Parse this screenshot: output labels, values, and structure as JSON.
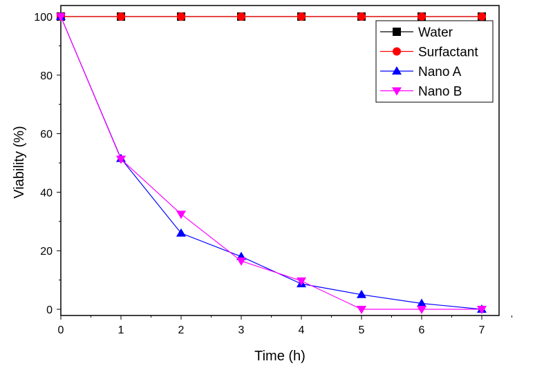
{
  "chart_data": {
    "type": "line",
    "title": "",
    "xlabel": "Time (h)",
    "ylabel": "Viability (%)",
    "xlim": [
      0,
      7.3
    ],
    "ylim": [
      -2,
      102
    ],
    "xticks": [
      0,
      1,
      2,
      3,
      4,
      5,
      6,
      7
    ],
    "yticks": [
      0,
      20,
      40,
      60,
      80,
      100
    ],
    "grid": false,
    "legend": "top-right",
    "x": [
      0,
      1,
      2,
      3,
      4,
      5,
      6,
      7
    ],
    "series": [
      {
        "name": "Water",
        "color": "#000000",
        "marker": "square",
        "values": [
          100,
          100,
          100,
          100,
          100,
          100,
          100,
          100
        ]
      },
      {
        "name": "Surfactant",
        "color": "#ff0000",
        "marker": "circle",
        "values": [
          100,
          100,
          100,
          100,
          100,
          100,
          100,
          100
        ]
      },
      {
        "name": "Nano A",
        "color": "#0000ff",
        "marker": "triangle-up",
        "values": [
          100,
          51.5,
          26,
          18,
          8.7,
          5,
          2,
          0
        ]
      },
      {
        "name": "Nano B",
        "color": "#ff00ff",
        "marker": "triangle-down",
        "values": [
          100,
          51.3,
          32.5,
          16.5,
          9.7,
          0,
          0,
          0
        ]
      }
    ]
  }
}
